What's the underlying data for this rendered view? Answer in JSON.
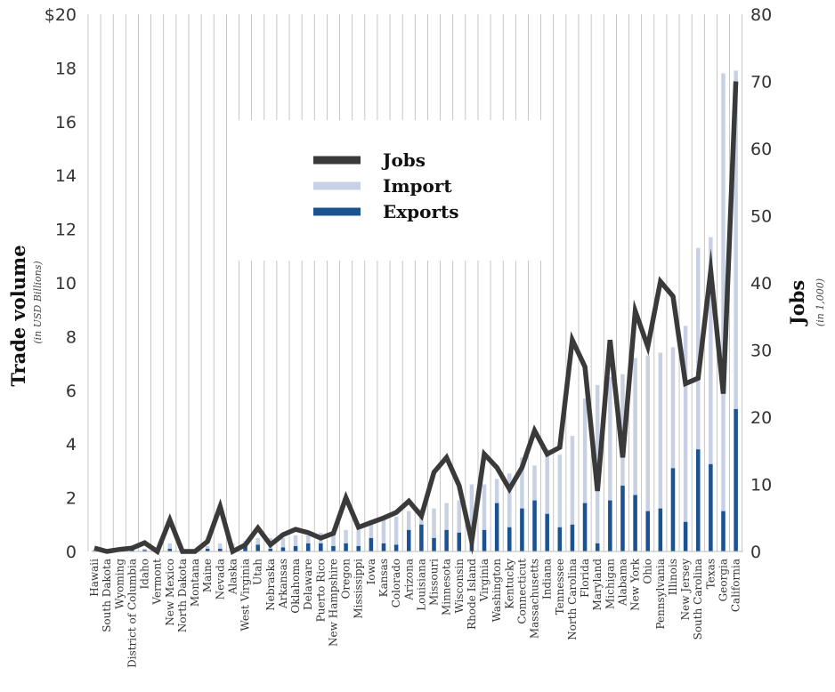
{
  "chart_data": {
    "type": "bar",
    "categories": [
      "Hawaii",
      "South Dakota",
      "Wyoming",
      "District of Columbia",
      "Idaho",
      "Vermont",
      "New Mexico",
      "North Dakota",
      "Montana",
      "Maine",
      "Nevada",
      "Alaska",
      "West Virginia",
      "Utah",
      "Nebraska",
      "Arkansas",
      "Oklahoma",
      "Delaware",
      "Puerto Rico",
      "New Hampshire",
      "Oregon",
      "Mississippi",
      "Iowa",
      "Kansas",
      "Colorado",
      "Arizona",
      "Louisiana",
      "Missouri",
      "Minnesota",
      "Wisconsin",
      "Rhode Island",
      "Virginia",
      "Washington",
      "Kentucky",
      "Connecticut",
      "Massachusetts",
      "Indiana",
      "Tennessee",
      "North Carolina",
      "Florida",
      "Maryland",
      "Michigan",
      "Alabama",
      "New York",
      "Ohio",
      "Pennsylvania",
      "Illinois",
      "New Jersey",
      "South Carolina",
      "Texas",
      "Georgia",
      "California"
    ],
    "series": [
      {
        "name": "Import",
        "axis": "left",
        "color": "#c8d0e3",
        "values": [
          0.05,
          0.05,
          0.05,
          0.1,
          0.1,
          0.1,
          0.3,
          0.1,
          0.1,
          0.2,
          0.3,
          0.3,
          0.4,
          0.5,
          0.5,
          0.5,
          0.6,
          0.6,
          0.7,
          0.7,
          0.8,
          0.8,
          1.0,
          1.2,
          1.3,
          1.5,
          1.6,
          1.6,
          1.8,
          1.9,
          2.5,
          2.5,
          2.7,
          2.9,
          3.5,
          3.2,
          3.8,
          3.6,
          4.3,
          5.7,
          6.2,
          6.5,
          6.6,
          7.2,
          7.3,
          7.4,
          7.6,
          8.4,
          11.3,
          11.7,
          17.8,
          17.9
        ]
      },
      {
        "name": "Exports",
        "axis": "left",
        "color": "#1b5391",
        "values": [
          0.02,
          0.02,
          0.02,
          0.05,
          0.05,
          0.02,
          0.1,
          0.05,
          0.05,
          0.1,
          0.1,
          0.05,
          0.2,
          0.25,
          0.1,
          0.15,
          0.2,
          0.3,
          0.3,
          0.2,
          0.3,
          0.2,
          0.5,
          0.3,
          0.25,
          0.8,
          1.0,
          0.5,
          0.8,
          0.7,
          0.5,
          0.8,
          1.8,
          0.9,
          1.6,
          1.9,
          1.4,
          0.9,
          1.0,
          1.8,
          0.3,
          1.9,
          2.45,
          2.1,
          1.5,
          1.6,
          3.1,
          1.1,
          3.8,
          3.25,
          1.5,
          5.3
        ]
      },
      {
        "name": "Jobs",
        "axis": "right",
        "color": "#3a3a3a",
        "values": [
          0.5,
          0,
          0.3,
          0.5,
          1.3,
          0,
          4.7,
          0,
          0,
          1.5,
          6.7,
          0,
          1,
          3.5,
          1,
          2.5,
          3.3,
          2.8,
          2,
          2.7,
          8,
          3.6,
          4.3,
          5,
          5.8,
          7.5,
          5.3,
          11.8,
          14,
          9.8,
          1.5,
          14.5,
          12.5,
          9.3,
          12.5,
          18,
          14.5,
          15.5,
          31.5,
          27.5,
          9,
          31.5,
          14,
          35.8,
          30.5,
          40.2,
          38,
          25,
          25.8,
          41.8,
          23.5,
          70
        ]
      }
    ],
    "legend": [
      "Jobs",
      "Import",
      "Exports"
    ],
    "legend_position": "upper-left-center",
    "ylabel": "Trade volume",
    "ylabel_sub": "(in USD Billions)",
    "y2label": "Jobs",
    "y2label_sub": "(in 1,000)",
    "ylim": [
      0,
      20
    ],
    "y2lim": [
      0,
      80
    ],
    "yticks": [
      "$20",
      "18",
      "16",
      "14",
      "12",
      "10",
      "8",
      "6",
      "4",
      "2",
      "0"
    ],
    "y2ticks": [
      "80",
      "70",
      "60",
      "50",
      "40",
      "30",
      "20",
      "10",
      "0"
    ],
    "grid": "vertical"
  }
}
